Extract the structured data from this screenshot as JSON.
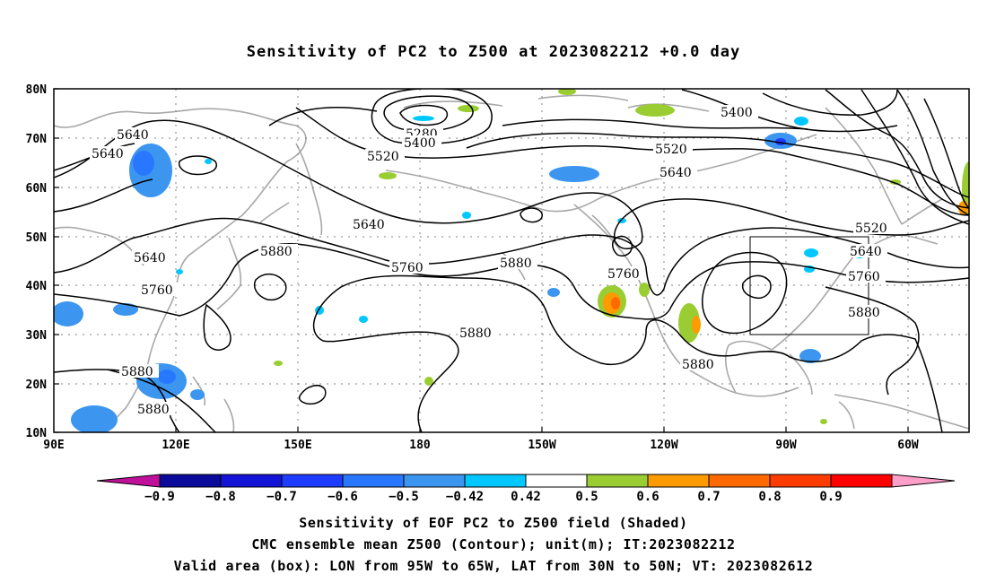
{
  "title": "Sensitivity of PC2 to Z500 at 2023082212 +0.0 day",
  "map": {
    "lat_labels": [
      "80N",
      "70N",
      "60N",
      "50N",
      "40N",
      "30N",
      "20N",
      "10N"
    ],
    "lon_labels": [
      "90E",
      "120E",
      "150E",
      "180",
      "150W",
      "120W",
      "90W",
      "60W"
    ],
    "contour_labels": [
      {
        "text": "5640",
        "id": "c1"
      },
      {
        "text": "5640",
        "id": "c2"
      },
      {
        "text": "5280",
        "id": "c3"
      },
      {
        "text": "5400",
        "id": "c4"
      },
      {
        "text": "5520",
        "id": "c5"
      },
      {
        "text": "5400",
        "id": "c6"
      },
      {
        "text": "5520",
        "id": "c7"
      },
      {
        "text": "5640",
        "id": "c8"
      },
      {
        "text": "5640",
        "id": "c9"
      },
      {
        "text": "5640",
        "id": "c10"
      },
      {
        "text": "5880",
        "id": "c11"
      },
      {
        "text": "5760",
        "id": "c12"
      },
      {
        "text": "5760",
        "id": "c13"
      },
      {
        "text": "5880",
        "id": "c14"
      },
      {
        "text": "5760",
        "id": "c15"
      },
      {
        "text": "5520",
        "id": "c16"
      },
      {
        "text": "5640",
        "id": "c17"
      },
      {
        "text": "5760",
        "id": "c18"
      },
      {
        "text": "5880",
        "id": "c19"
      },
      {
        "text": "5880",
        "id": "c20"
      },
      {
        "text": "5880",
        "id": "c21"
      },
      {
        "text": "5880",
        "id": "c22"
      },
      {
        "text": "5880",
        "id": "c23"
      }
    ]
  },
  "colorbar": {
    "labels": [
      "-0.9",
      "-0.8",
      "-0.7",
      "-0.6",
      "-0.5",
      "-0.42",
      "0.42",
      "0.5",
      "0.6",
      "0.7",
      "0.8",
      "0.9"
    ],
    "colors": [
      "#0a0a9b",
      "#1414d8",
      "#1e3cff",
      "#2878ff",
      "#3c96f0",
      "#00c8ff",
      "#ffffff",
      "#9acd32",
      "#ff9b00",
      "#ff6a00",
      "#ff3c00",
      "#ff0000"
    ],
    "low_end_color": "#c0109a",
    "high_end_color": "#ff9ec8"
  },
  "captions": {
    "line1": "Sensitivity of EOF PC2 to Z500 field (Shaded)",
    "line2": "CMC ensemble mean Z500 (Contour); unit(m); IT:2023082212",
    "line3": "Valid area (box): LON from 95W to 65W, LAT from 30N to 50N; VT: 2023082612"
  }
}
